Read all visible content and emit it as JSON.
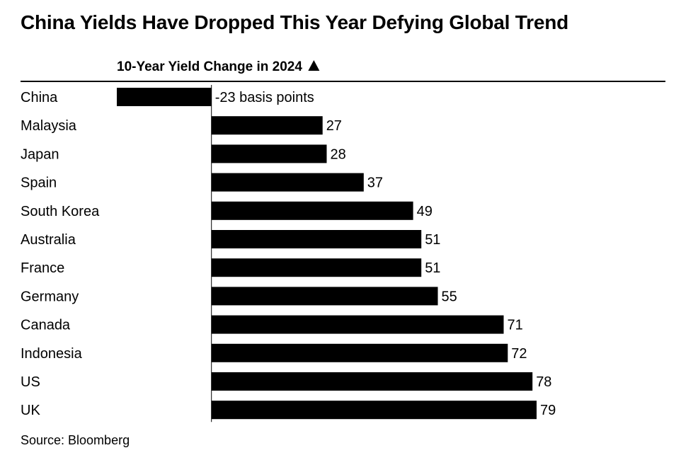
{
  "title": "China Yields Have Dropped This Year Defying Global Trend",
  "source": "Source: Bloomberg",
  "chart_data": {
    "type": "bar",
    "orientation": "horizontal",
    "header": "10-Year Yield Change in 2024",
    "header_icon": "triangle-up-icon",
    "categories": [
      "China",
      "Malaysia",
      "Japan",
      "Spain",
      "South Korea",
      "Australia",
      "France",
      "Germany",
      "Canada",
      "Indonesia",
      "US",
      "UK"
    ],
    "values": [
      -23,
      27,
      28,
      37,
      49,
      51,
      51,
      55,
      71,
      72,
      78,
      79
    ],
    "value_labels": [
      "-23 basis points",
      "27",
      "28",
      "37",
      "49",
      "51",
      "51",
      "55",
      "71",
      "72",
      "78",
      "79"
    ],
    "xlim": [
      -23,
      79
    ],
    "grid": false,
    "colors": {
      "bar": "#000000",
      "text": "#000000",
      "background": "#ffffff"
    }
  }
}
